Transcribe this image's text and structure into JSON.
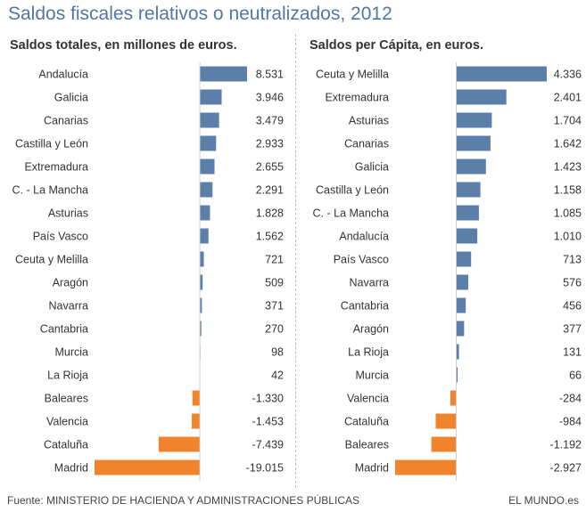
{
  "title": "Saldos fiscales relativos o neutralizados, 2012",
  "footer": {
    "source": "Fuente: MINISTERIO DE HACIENDA Y ADMINISTRACIONES PÚBLICAS",
    "brand": "EL MUNDO.es"
  },
  "colors": {
    "positive": "#5b7fa9",
    "negative": "#f0842c"
  },
  "chart_data": [
    {
      "type": "bar",
      "orientation": "horizontal",
      "title": "Saldos totales, en millones de euros.",
      "categories": [
        "Andalucía",
        "Galicia",
        "Canarias",
        "Castilla y León",
        "Extremadura",
        "C. - La Mancha",
        "Asturias",
        "País Vasco",
        "Ceuta y Melilla",
        "Aragón",
        "Navarra",
        "Cantabria",
        "Murcia",
        "La Rioja",
        "Baleares",
        "Valencia",
        "Cataluña",
        "Madrid"
      ],
      "values": [
        8531,
        3946,
        3479,
        2933,
        2655,
        2291,
        1828,
        1562,
        721,
        509,
        371,
        270,
        98,
        42,
        -1330,
        -1453,
        -7439,
        -19015
      ],
      "labels": [
        "8.531",
        "3.946",
        "3.479",
        "2.933",
        "2.655",
        "2.291",
        "1.828",
        "1.562",
        "721",
        "509",
        "371",
        "270",
        "98",
        "42",
        "-1.330",
        "-1.453",
        "-7.439",
        "-19.015"
      ],
      "xlim": [
        -19015,
        8531
      ]
    },
    {
      "type": "bar",
      "orientation": "horizontal",
      "title": "Saldos per Cápita, en euros.",
      "categories": [
        "Ceuta y Melilla",
        "Extremadura",
        "Asturias",
        "Canarias",
        "Galicia",
        "Castilla y León",
        "C. - La Mancha",
        "Andalucía",
        "País Vasco",
        "Navarra",
        "Cantabria",
        "Aragón",
        "La Rioja",
        "Murcia",
        "Valencia",
        "Cataluña",
        "Baleares",
        "Madrid"
      ],
      "values": [
        4336,
        2401,
        1704,
        1642,
        1423,
        1158,
        1085,
        1010,
        713,
        576,
        456,
        377,
        131,
        66,
        -284,
        -984,
        -1192,
        -2927
      ],
      "labels": [
        "4.336",
        "2.401",
        "1.704",
        "1.642",
        "1.423",
        "1.158",
        "1.085",
        "1.010",
        "713",
        "576",
        "456",
        "377",
        "131",
        "66",
        "-284",
        "-984",
        "-1.192",
        "-2.927"
      ],
      "xlim": [
        -2927,
        4336
      ]
    }
  ]
}
